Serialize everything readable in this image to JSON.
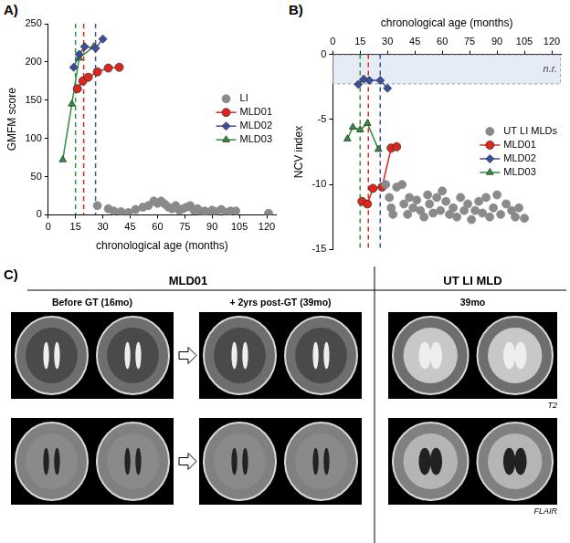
{
  "chart_data": [
    {
      "type": "scatter",
      "panel": "A)",
      "x_label": "chronological age (months)",
      "y_label": "GMFM score",
      "xlim": [
        0,
        125
      ],
      "xticks": [
        0,
        15,
        30,
        45,
        60,
        75,
        90,
        105,
        120
      ],
      "ylim": [
        0,
        250
      ],
      "yticks": [
        0,
        50,
        100,
        150,
        200,
        250
      ],
      "grid": false,
      "legend": "right",
      "reference_lines": [
        {
          "x": 15,
          "color": "#2f8f3a",
          "line_style": "dashed"
        },
        {
          "x": 19.5,
          "color": "#e0261b",
          "line_style": "dashed"
        },
        {
          "x": 26,
          "color": "#3b4ea0",
          "line_style": "dashed"
        }
      ],
      "series": [
        {
          "name": "LI",
          "color": "#8a8a8a",
          "marker": "circle",
          "line_style": "none",
          "x": [
            27,
            33,
            36,
            40,
            44,
            48,
            52,
            55,
            58,
            60,
            62,
            64,
            66,
            68,
            70,
            72,
            74,
            76,
            78,
            80,
            82,
            84,
            86,
            88,
            90,
            92,
            95,
            98,
            100,
            103,
            121
          ],
          "values": [
            12,
            8,
            5,
            4,
            3,
            7,
            10,
            12,
            18,
            15,
            18,
            14,
            10,
            8,
            12,
            6,
            8,
            10,
            12,
            6,
            8,
            4,
            5,
            3,
            6,
            4,
            7,
            3,
            5,
            5,
            2
          ]
        },
        {
          "name": "MLD01",
          "color": "#e0261b",
          "marker": "circle",
          "line_style": "solid",
          "x": [
            16,
            19,
            22,
            27,
            33,
            39
          ],
          "values": [
            165,
            175,
            180,
            187,
            192,
            193
          ]
        },
        {
          "name": "MLD02",
          "color": "#3b4ea0",
          "marker": "diamond",
          "line_style": "solid",
          "x": [
            14,
            17,
            20,
            26,
            30
          ],
          "values": [
            193,
            210,
            220,
            218,
            230
          ]
        },
        {
          "name": "MLD03",
          "color": "#2f8f3a",
          "marker": "triangle",
          "line_style": "solid",
          "x": [
            8,
            13,
            17,
            25
          ],
          "values": [
            72,
            145,
            205,
            220
          ]
        }
      ]
    },
    {
      "type": "scatter",
      "panel": "B)",
      "x_label": "chronological age (months)",
      "y_label": "NCV index",
      "xlim": [
        0,
        125
      ],
      "xticks": [
        0,
        15,
        30,
        45,
        60,
        75,
        90,
        105,
        120
      ],
      "ylim": [
        -15,
        0
      ],
      "yticks": [
        -15,
        -10,
        -5,
        0
      ],
      "grid": false,
      "legend": "right",
      "normal_range": {
        "values": [
          -2.3,
          0
        ],
        "label": "n.r."
      },
      "reference_lines": [
        {
          "x": 15,
          "color": "#2f8f3a",
          "line_style": "dashed"
        },
        {
          "x": 19.5,
          "color": "#e0261b",
          "line_style": "dashed"
        },
        {
          "x": 26,
          "color": "#3b4ea0",
          "line_style": "dashed"
        }
      ],
      "series": [
        {
          "name": "UT LI MLDs",
          "color": "#8a8a8a",
          "marker": "circle",
          "line_style": "none",
          "x": [
            29,
            31,
            32,
            33,
            35,
            38,
            39,
            41,
            42,
            44,
            46,
            48,
            50,
            52,
            53,
            55,
            57,
            59,
            60,
            62,
            64,
            66,
            68,
            70,
            72,
            74,
            76,
            78,
            80,
            82,
            84,
            86,
            88,
            90,
            92,
            95,
            98,
            100,
            102,
            105
          ],
          "values": [
            -10,
            -11,
            -11.8,
            -12.3,
            -10.2,
            -10,
            -11.5,
            -12.3,
            -11,
            -11.8,
            -11.2,
            -12,
            -12.5,
            -10.8,
            -11.5,
            -12.2,
            -11,
            -12,
            -10.5,
            -11.3,
            -12.3,
            -11.8,
            -12.5,
            -11,
            -12,
            -11.5,
            -12.7,
            -12,
            -11.3,
            -12.2,
            -11,
            -12.5,
            -11.8,
            -10.8,
            -12.3,
            -11.5,
            -12,
            -12.5,
            -11.8,
            -12.6
          ]
        },
        {
          "name": "MLD01",
          "color": "#e0261b",
          "marker": "circle",
          "line_style": "solid",
          "x": [
            16,
            19,
            22,
            27,
            32,
            35
          ],
          "values": [
            -11.3,
            -11.5,
            -10.3,
            -10.2,
            -7.2,
            -7.1
          ]
        },
        {
          "name": "MLD02",
          "color": "#3b4ea0",
          "marker": "diamond",
          "line_style": "solid",
          "x": [
            14,
            17,
            20,
            26,
            30
          ],
          "values": [
            -2.3,
            -1.9,
            -2.0,
            -2.0,
            -2.6
          ]
        },
        {
          "name": "MLD03",
          "color": "#2f8f3a",
          "marker": "triangle",
          "line_style": "solid",
          "x": [
            8,
            11,
            15,
            19,
            25
          ],
          "values": [
            -6.5,
            -5.6,
            -5.8,
            -5.3,
            -7.3
          ]
        }
      ]
    }
  ],
  "panel_c": {
    "panel": "C)",
    "groups": [
      {
        "title": "MLD01",
        "columns": [
          "Before GT (16mo)",
          "+ 2yrs post-GT (39mo)"
        ]
      },
      {
        "title": "UT LI MLD",
        "columns": [
          "39mo"
        ]
      }
    ],
    "sequences": [
      "T2",
      "FLAIR"
    ]
  }
}
